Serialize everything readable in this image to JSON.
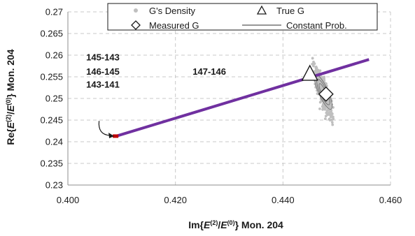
{
  "chart_data": {
    "type": "scatter",
    "xlabel": {
      "prefix": "Im{",
      "num": "E",
      "num_sup": "(2)",
      "slash": "/",
      "den": "E",
      "den_sup": "(0)",
      "suffix": "}  Mon.  204"
    },
    "ylabel": {
      "prefix": "Re{",
      "num": "E",
      "num_sup": "(2)",
      "slash": "/",
      "den": "E",
      "den_sup": "(0)",
      "suffix": "}  Mon.  204"
    },
    "xlim": [
      0.4,
      0.46
    ],
    "ylim": [
      0.23,
      0.27
    ],
    "x_ticks": [
      "0.400",
      "0.420",
      "0.440",
      "0.460"
    ],
    "y_ticks": [
      "0.23",
      "0.235",
      "0.24",
      "0.245",
      "0.25",
      "0.255",
      "0.26",
      "0.265",
      "0.27"
    ],
    "grid": true,
    "legend": {
      "placement": "top",
      "entries": [
        {
          "label": "G's Density",
          "marker": "dot-icon"
        },
        {
          "label": "True G",
          "marker": "triangle-icon"
        },
        {
          "label": "Measured G",
          "marker": "diamond-icon"
        },
        {
          "label": "Constant Prob.",
          "marker": "line-icon"
        }
      ]
    },
    "series": [
      {
        "name": "Constant Prob.",
        "kind": "line",
        "color": "#7030a0",
        "x": [
          0.409,
          0.456
        ],
        "y": [
          0.2413,
          0.259
        ]
      },
      {
        "name": "True G",
        "kind": "point",
        "x": 0.445,
        "y": 0.2555
      },
      {
        "name": "Measured G",
        "kind": "point",
        "x": 0.448,
        "y": 0.251
      },
      {
        "name": "G's Density",
        "kind": "cloud",
        "color": "#bfbfbf",
        "center": [
          0.4475,
          0.2515
        ],
        "spread_along": 0.006,
        "spread_across": 0.0008,
        "x_range": [
          0.444,
          0.453
        ],
        "y_range": [
          0.242,
          0.262
        ]
      }
    ],
    "start_marker": {
      "x": 0.409,
      "y": 0.2413,
      "color": "#c00000"
    },
    "annotations": [
      {
        "text": "145-143",
        "x": 0.4034,
        "y": 0.2588
      },
      {
        "text": "146-145",
        "x": 0.4034,
        "y": 0.2555
      },
      {
        "text": "143-141",
        "x": 0.4034,
        "y": 0.2525
      },
      {
        "text": "147-146",
        "x": 0.4232,
        "y": 0.2555
      }
    ],
    "arrow": {
      "from": [
        0.4058,
        0.2448
      ],
      "to": [
        0.4086,
        0.2413
      ]
    }
  }
}
